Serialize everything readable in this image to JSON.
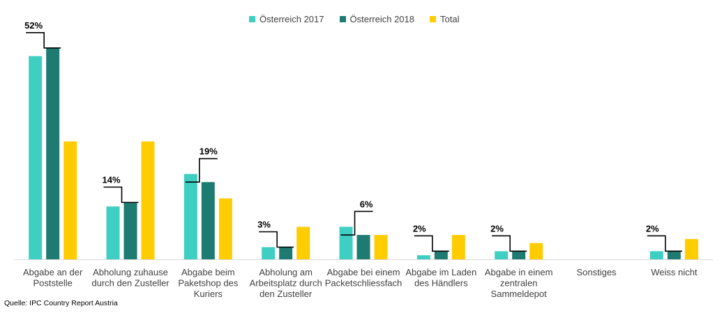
{
  "chart_data": {
    "type": "bar",
    "categories": [
      [
        "Abgabe an der",
        "Poststelle"
      ],
      [
        "Abholung zuhause",
        "durch den Zusteller"
      ],
      [
        "Abgabe beim",
        "Paketshop des",
        "Kuriers"
      ],
      [
        "Abholung am",
        "Arbeitsplatz durch",
        "den Zusteller"
      ],
      [
        "Abgabe bei einem",
        "Packetschliessfach"
      ],
      [
        "Abgabe im Laden",
        "des Händlers"
      ],
      [
        "Abgabe in einem",
        "zentralen",
        "Sammeldepot"
      ],
      [
        "Sonstiges"
      ],
      [
        "Weiss nicht"
      ]
    ],
    "series": [
      {
        "name": "Österreich 2017",
        "color": "#3ECFC2",
        "values": [
          50,
          13,
          21,
          3,
          8,
          1,
          2,
          0,
          2
        ]
      },
      {
        "name": "Österreich 2018",
        "color": "#1E7B72",
        "values": [
          52,
          14,
          19,
          3,
          6,
          2,
          2,
          0,
          2
        ]
      },
      {
        "name": "Total",
        "color": "#FFCC00",
        "values": [
          29,
          29,
          15,
          8,
          6,
          6,
          4,
          0,
          5
        ]
      }
    ],
    "annotations": [
      {
        "category": 0,
        "text": "52%",
        "direction": "up"
      },
      {
        "category": 1,
        "text": "14%",
        "direction": "up"
      },
      {
        "category": 2,
        "text": "19%",
        "direction": "down"
      },
      {
        "category": 3,
        "text": "3%",
        "direction": "up"
      },
      {
        "category": 4,
        "text": "6%",
        "direction": "down"
      },
      {
        "category": 5,
        "text": "2%",
        "direction": "up"
      },
      {
        "category": 6,
        "text": "2%",
        "direction": "up"
      },
      {
        "category": 8,
        "text": "2%",
        "direction": "up"
      }
    ],
    "ylim": [
      0,
      53
    ],
    "grid": false,
    "legend_position": "top-center"
  },
  "source": "Quelle: IPC Country Report Austria"
}
